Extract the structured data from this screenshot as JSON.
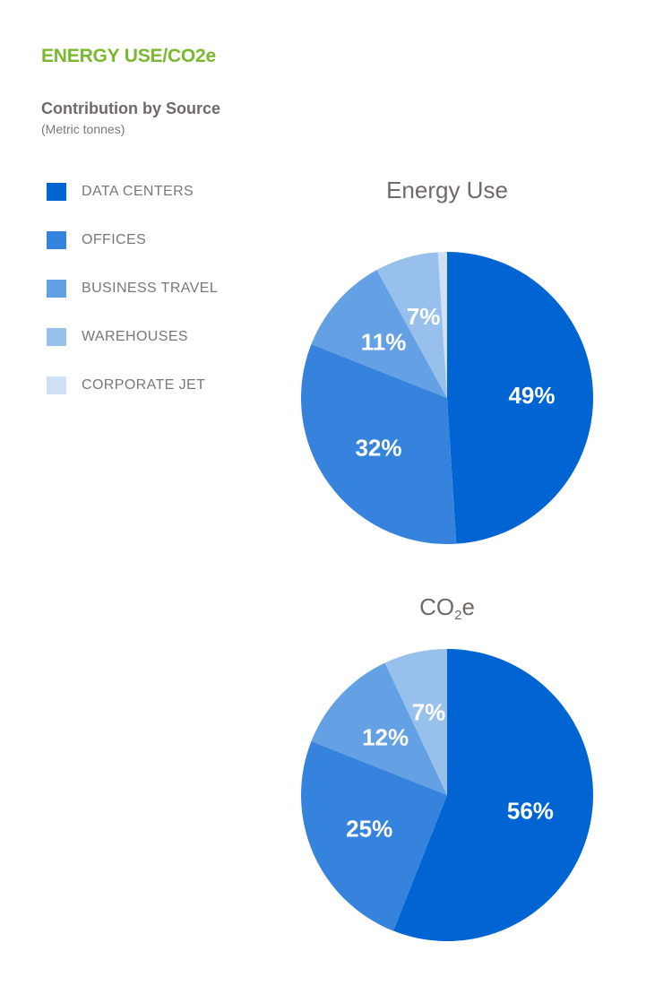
{
  "page": {
    "title": "ENERGY USE/CO2e",
    "section_title": "Contribution by Source",
    "section_subtitle": "(Metric tonnes)"
  },
  "legend": [
    {
      "label": "DATA CENTERS",
      "color": "#0064d2"
    },
    {
      "label": "OFFICES",
      "color": "#3583dc"
    },
    {
      "label": "BUSINESS TRAVEL",
      "color": "#64a0e4"
    },
    {
      "label": "WAREHOUSES",
      "color": "#98c0ed"
    },
    {
      "label": "CORPORATE JET",
      "color": "#cfe1f5"
    }
  ],
  "chart_data": [
    {
      "type": "pie",
      "title_main": "Energy Use",
      "title_sub": "",
      "title_suffix": "",
      "categories": [
        "DATA CENTERS",
        "OFFICES",
        "BUSINESS TRAVEL",
        "WAREHOUSES",
        "CORPORATE JET"
      ],
      "values": [
        49,
        32,
        11,
        7,
        1
      ],
      "labels": [
        "49%",
        "32%",
        "11%",
        "7%",
        "1%"
      ],
      "colors": [
        "#0064d2",
        "#3583dc",
        "#64a0e4",
        "#98c0ed",
        "#cfe1f5"
      ],
      "label_colors": [
        "#ffffff",
        "#ffffff",
        "#ffffff",
        "#ffffff",
        "#98c0ed"
      ]
    },
    {
      "type": "pie",
      "title_main": "CO",
      "title_sub": "2",
      "title_suffix": "e",
      "categories": [
        "DATA CENTERS",
        "OFFICES",
        "BUSINESS TRAVEL",
        "WAREHOUSES"
      ],
      "values": [
        56,
        25,
        12,
        7
      ],
      "labels": [
        "56%",
        "25%",
        "12%",
        "7%"
      ],
      "colors": [
        "#0064d2",
        "#3583dc",
        "#64a0e4",
        "#98c0ed"
      ],
      "label_colors": [
        "#ffffff",
        "#ffffff",
        "#ffffff",
        "#ffffff"
      ]
    }
  ]
}
